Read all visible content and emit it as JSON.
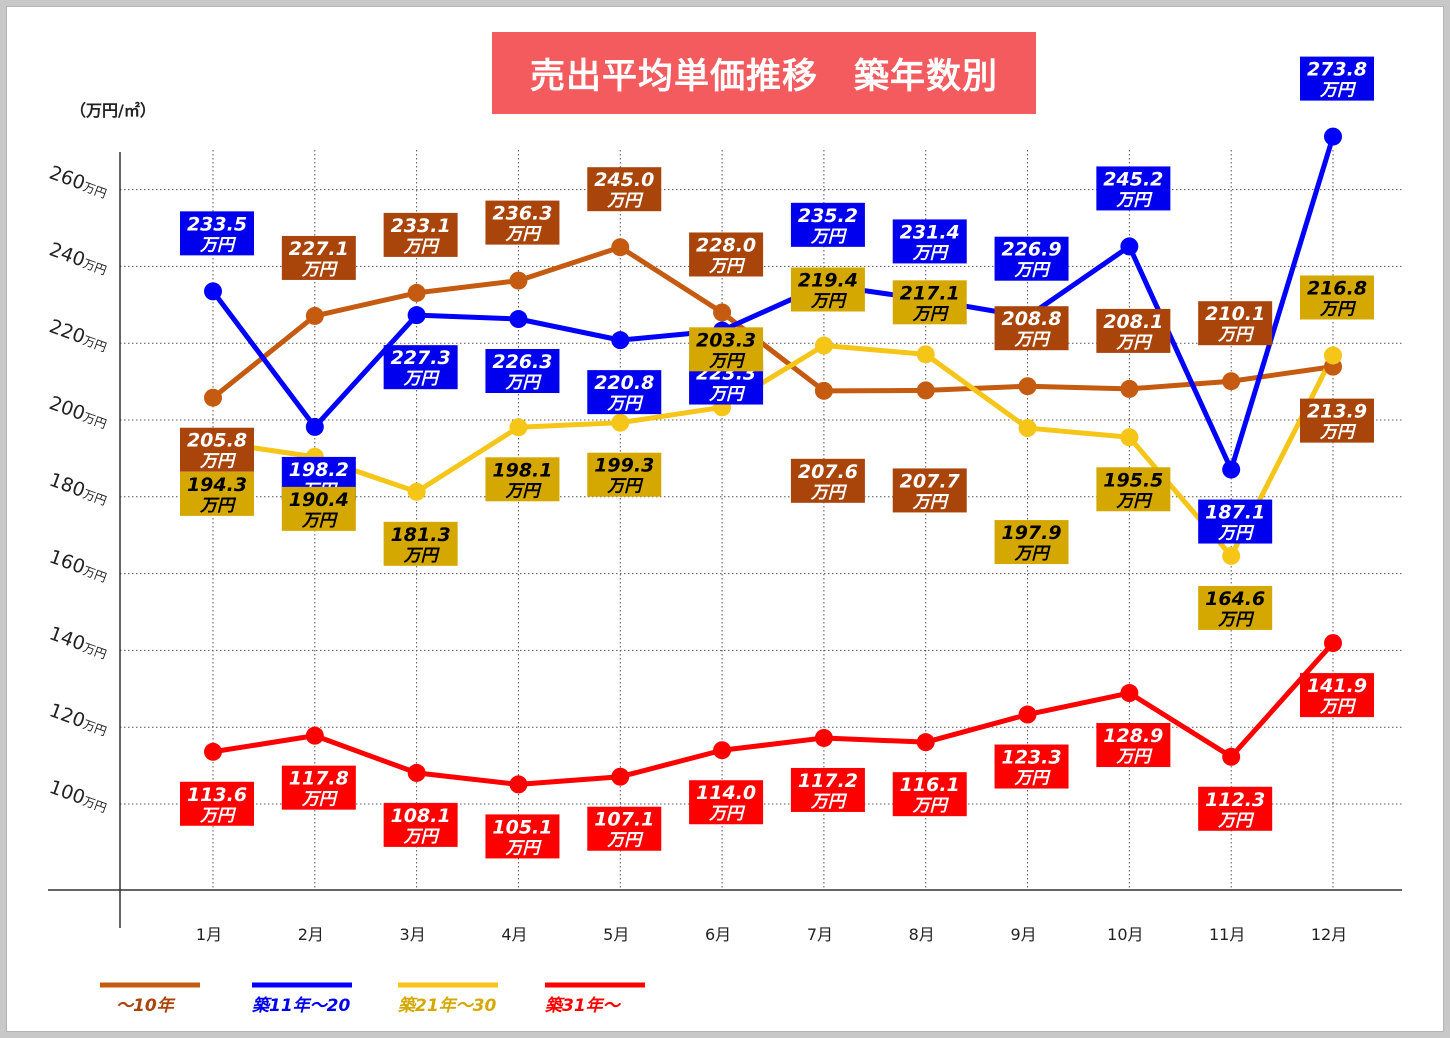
{
  "title": "売出平均単価推移　築年数別",
  "unit_label": "（万円/㎡）",
  "chart_data": {
    "type": "line",
    "title": "売出平均単価推移　築年数別",
    "ylabel": "（万円/㎡）",
    "categories": [
      "1月",
      "2月",
      "3月",
      "4月",
      "5月",
      "6月",
      "7月",
      "8月",
      "9月",
      "10月",
      "11月",
      "12月"
    ],
    "y_ticks": [
      {
        "value": 100,
        "label": "100万円"
      },
      {
        "value": 120,
        "label": "120万円"
      },
      {
        "value": 140,
        "label": "140万円"
      },
      {
        "value": 160,
        "label": "160万円"
      },
      {
        "value": 180,
        "label": "180万円"
      },
      {
        "value": 200,
        "label": "200万円"
      },
      {
        "value": 220,
        "label": "220万円"
      },
      {
        "value": 240,
        "label": "240万円"
      },
      {
        "value": 260,
        "label": "260万円"
      }
    ],
    "ylim": [
      80,
      270
    ],
    "unit_suffix": "万円",
    "grid": true,
    "legend_position": "bottom-left",
    "series": [
      {
        "name": "〜10年",
        "color": "#c55a11",
        "label_color": "#a9440b",
        "label_text_color": "#ffffff",
        "values": [
          205.8,
          227.1,
          233.1,
          236.3,
          245.0,
          228.0,
          207.6,
          207.7,
          208.8,
          208.1,
          210.1,
          213.9
        ]
      },
      {
        "name": "築11年〜20",
        "color": "#0000ff",
        "label_color": "#0000ee",
        "label_text_color": "#ffffff",
        "values": [
          233.5,
          198.2,
          227.3,
          226.3,
          220.8,
          223.3,
          235.2,
          231.4,
          226.9,
          245.2,
          187.1,
          273.8
        ]
      },
      {
        "name": "築21年〜30",
        "color": "#f5c518",
        "label_color": "#d4a800",
        "label_text_color": "#000000",
        "values": [
          194.3,
          190.4,
          181.3,
          198.1,
          199.3,
          203.3,
          219.4,
          217.1,
          197.9,
          195.5,
          164.6,
          216.8
        ]
      },
      {
        "name": "築31年〜",
        "color": "#ff0000",
        "label_color": "#ff0000",
        "label_text_color": "#ffffff",
        "values": [
          113.6,
          117.8,
          108.1,
          105.1,
          107.1,
          114.0,
          117.2,
          116.1,
          123.3,
          128.9,
          112.3,
          141.9
        ]
      }
    ]
  }
}
